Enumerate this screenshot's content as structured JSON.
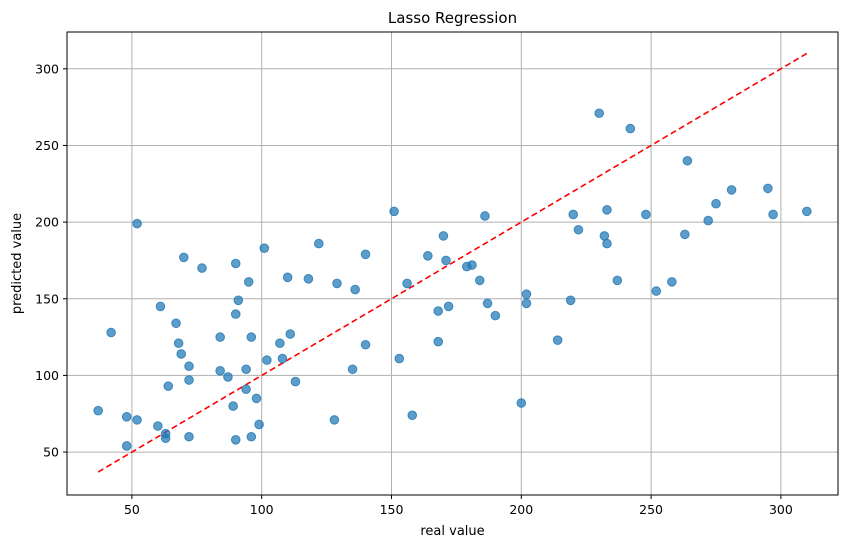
{
  "chart_data": {
    "type": "scatter",
    "title": "Lasso Regression",
    "xlabel": "real value",
    "ylabel": "predicted value",
    "xlim": [
      25,
      322
    ],
    "ylim": [
      22,
      324
    ],
    "xticks": [
      50,
      100,
      150,
      200,
      250,
      300
    ],
    "yticks": [
      50,
      100,
      150,
      200,
      250,
      300
    ],
    "grid": true,
    "colors": {
      "points": "#1f77b4",
      "reference_line": "#ff0000"
    },
    "reference_line": {
      "style": "dashed",
      "x": [
        37,
        310
      ],
      "y": [
        37,
        310
      ]
    },
    "points": [
      [
        37,
        77
      ],
      [
        42,
        128
      ],
      [
        48,
        73
      ],
      [
        48,
        54
      ],
      [
        52,
        199
      ],
      [
        52,
        71
      ],
      [
        60,
        67
      ],
      [
        61,
        145
      ],
      [
        63,
        62
      ],
      [
        63,
        59
      ],
      [
        64,
        93
      ],
      [
        67,
        134
      ],
      [
        68,
        121
      ],
      [
        69,
        114
      ],
      [
        70,
        177
      ],
      [
        72,
        106
      ],
      [
        72,
        97
      ],
      [
        72,
        60
      ],
      [
        77,
        170
      ],
      [
        84,
        125
      ],
      [
        84,
        103
      ],
      [
        87,
        99
      ],
      [
        89,
        80
      ],
      [
        90,
        173
      ],
      [
        90,
        140
      ],
      [
        90,
        58
      ],
      [
        91,
        149
      ],
      [
        94,
        104
      ],
      [
        94,
        91
      ],
      [
        95,
        161
      ],
      [
        96,
        125
      ],
      [
        96,
        60
      ],
      [
        98,
        85
      ],
      [
        99,
        68
      ],
      [
        101,
        183
      ],
      [
        102,
        110
      ],
      [
        107,
        121
      ],
      [
        108,
        111
      ],
      [
        110,
        164
      ],
      [
        111,
        127
      ],
      [
        113,
        96
      ],
      [
        118,
        163
      ],
      [
        122,
        186
      ],
      [
        128,
        71
      ],
      [
        129,
        160
      ],
      [
        135,
        104
      ],
      [
        136,
        156
      ],
      [
        140,
        179
      ],
      [
        140,
        120
      ],
      [
        151,
        207
      ],
      [
        153,
        111
      ],
      [
        156,
        160
      ],
      [
        158,
        74
      ],
      [
        164,
        178
      ],
      [
        168,
        142
      ],
      [
        168,
        122
      ],
      [
        170,
        191
      ],
      [
        171,
        175
      ],
      [
        172,
        145
      ],
      [
        179,
        171
      ],
      [
        181,
        172
      ],
      [
        184,
        162
      ],
      [
        186,
        204
      ],
      [
        187,
        147
      ],
      [
        190,
        139
      ],
      [
        200,
        82
      ],
      [
        202,
        153
      ],
      [
        202,
        147
      ],
      [
        214,
        123
      ],
      [
        219,
        149
      ],
      [
        220,
        205
      ],
      [
        222,
        195
      ],
      [
        230,
        271
      ],
      [
        232,
        191
      ],
      [
        233,
        208
      ],
      [
        233,
        186
      ],
      [
        237,
        162
      ],
      [
        242,
        261
      ],
      [
        248,
        205
      ],
      [
        252,
        155
      ],
      [
        258,
        161
      ],
      [
        263,
        192
      ],
      [
        264,
        240
      ],
      [
        272,
        201
      ],
      [
        275,
        212
      ],
      [
        281,
        221
      ],
      [
        295,
        222
      ],
      [
        297,
        205
      ],
      [
        310,
        207
      ]
    ]
  }
}
